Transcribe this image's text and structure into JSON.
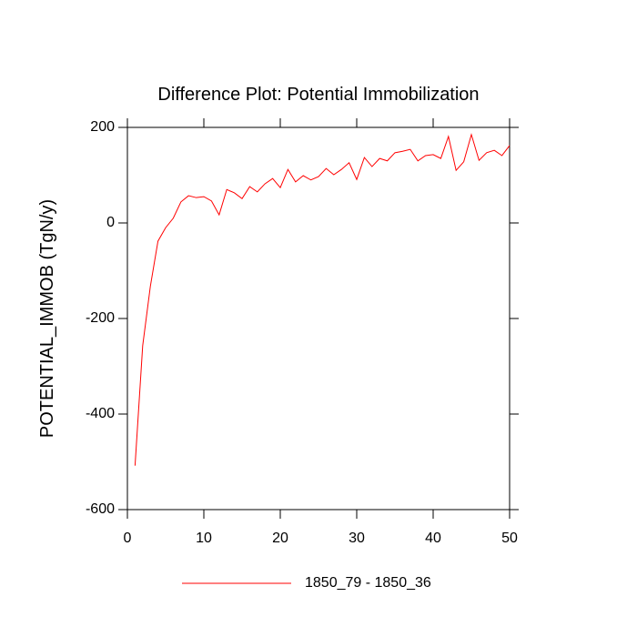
{
  "chart_data": {
    "type": "line",
    "title": "Difference Plot: Potential Immobilization",
    "y_label": "POTENTIAL_IMMOB  (TgN/y)",
    "x": [
      1,
      2,
      3,
      4,
      5,
      6,
      7,
      8,
      9,
      10,
      11,
      12,
      13,
      14,
      15,
      16,
      17,
      18,
      19,
      20,
      21,
      22,
      23,
      24,
      25,
      26,
      27,
      28,
      29,
      30,
      31,
      32,
      33,
      34,
      35,
      36,
      37,
      38,
      39,
      40,
      41,
      42,
      43,
      44,
      45,
      46,
      47,
      48,
      49,
      50
    ],
    "series": [
      {
        "name": "1850_79 - 1850_36",
        "color": "#ff0000",
        "values": [
          -508,
          -257,
          -133,
          -38,
          -10,
          10,
          44,
          57,
          53,
          55,
          46,
          17,
          70,
          63,
          51,
          76,
          65,
          82,
          93,
          74,
          112,
          86,
          99,
          90,
          97,
          114,
          101,
          112,
          126,
          91,
          137,
          118,
          135,
          130,
          147,
          150,
          154,
          130,
          141,
          143,
          135,
          181,
          110,
          128,
          185,
          131,
          147,
          152,
          141,
          162
        ]
      }
    ],
    "xlim": [
      0,
      50
    ],
    "xticks": [
      0,
      10,
      20,
      30,
      40,
      50
    ],
    "ylim": [
      -600,
      200
    ],
    "yticks": [
      -600,
      -400,
      -200,
      0,
      200
    ],
    "legend": "bottom"
  }
}
